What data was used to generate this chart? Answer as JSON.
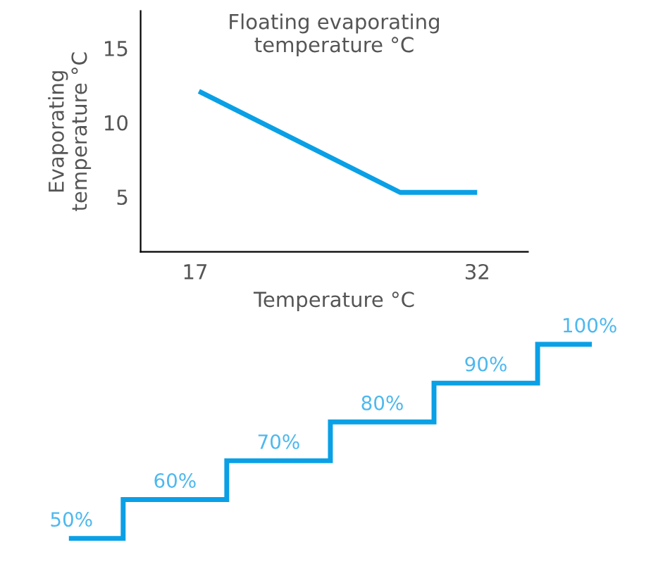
{
  "chart_data": [
    {
      "type": "line",
      "title": "Floating evaporating\ntemperature °C",
      "xlabel": "Temperature °C",
      "ylabel": "Evaporating\ntemperature °C",
      "x": [
        17.2,
        27.9,
        32
      ],
      "series": [
        {
          "color": "#0aa0e6",
          "values": [
            12.1,
            5.3,
            5.3
          ]
        }
      ],
      "xlim": [
        14.1,
        34.7
      ],
      "xticks": [
        17,
        32
      ],
      "ylim": [
        1.3,
        17.5
      ],
      "yticks": [
        5,
        10,
        15
      ],
      "grid": false,
      "legend": false
    },
    {
      "type": "step",
      "categories": [
        null,
        null,
        null,
        null,
        null,
        null
      ],
      "series": [
        {
          "color": "#0aa0e6",
          "values": [
            50,
            60,
            70,
            80,
            90,
            100
          ],
          "value_labels": [
            "50%",
            "60%",
            "70%",
            "80%",
            "90%",
            "100%"
          ]
        }
      ],
      "tick_labels": false
    }
  ]
}
